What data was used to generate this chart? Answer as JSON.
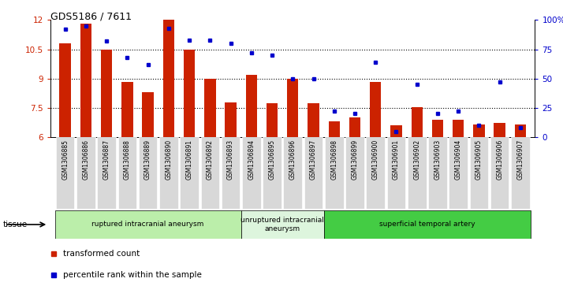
{
  "title": "GDS5186 / 7611",
  "samples": [
    "GSM1306885",
    "GSM1306886",
    "GSM1306887",
    "GSM1306888",
    "GSM1306889",
    "GSM1306890",
    "GSM1306891",
    "GSM1306892",
    "GSM1306893",
    "GSM1306894",
    "GSM1306895",
    "GSM1306896",
    "GSM1306897",
    "GSM1306898",
    "GSM1306899",
    "GSM1306900",
    "GSM1306901",
    "GSM1306902",
    "GSM1306903",
    "GSM1306904",
    "GSM1306905",
    "GSM1306906",
    "GSM1306907"
  ],
  "transformed_count": [
    10.8,
    11.8,
    10.5,
    8.85,
    8.3,
    12.0,
    10.5,
    9.0,
    7.8,
    9.2,
    7.75,
    9.0,
    7.75,
    6.8,
    7.0,
    8.85,
    6.6,
    7.55,
    6.9,
    6.9,
    6.65,
    6.75,
    6.65
  ],
  "percentile_rank": [
    92,
    95,
    82,
    68,
    62,
    93,
    83,
    83,
    80,
    72,
    70,
    50,
    50,
    22,
    20,
    64,
    5,
    45,
    20,
    22,
    10,
    47,
    8
  ],
  "ylim_left": [
    6,
    12
  ],
  "ylim_right": [
    0,
    100
  ],
  "yticks_left": [
    6,
    7.5,
    9,
    10.5,
    12
  ],
  "yticks_right": [
    0,
    25,
    50,
    75,
    100
  ],
  "ytick_labels_right": [
    "0",
    "25",
    "50",
    "75",
    "100%"
  ],
  "bar_color": "#cc2200",
  "dot_color": "#0000cc",
  "xtick_bg": "#d8d8d8",
  "tissue_groups": [
    {
      "label": "ruptured intracranial aneurysm",
      "start": 0,
      "end": 9,
      "color": "#bbeeaa"
    },
    {
      "label": "unruptured intracranial\naneurysm",
      "start": 9,
      "end": 13,
      "color": "#ddf5dd"
    },
    {
      "label": "superficial temporal artery",
      "start": 13,
      "end": 23,
      "color": "#44cc44"
    }
  ],
  "legend_items": [
    {
      "label": "transformed count",
      "color": "#cc2200"
    },
    {
      "label": "percentile rank within the sample",
      "color": "#0000cc"
    }
  ],
  "plot_bg": "#ffffff"
}
